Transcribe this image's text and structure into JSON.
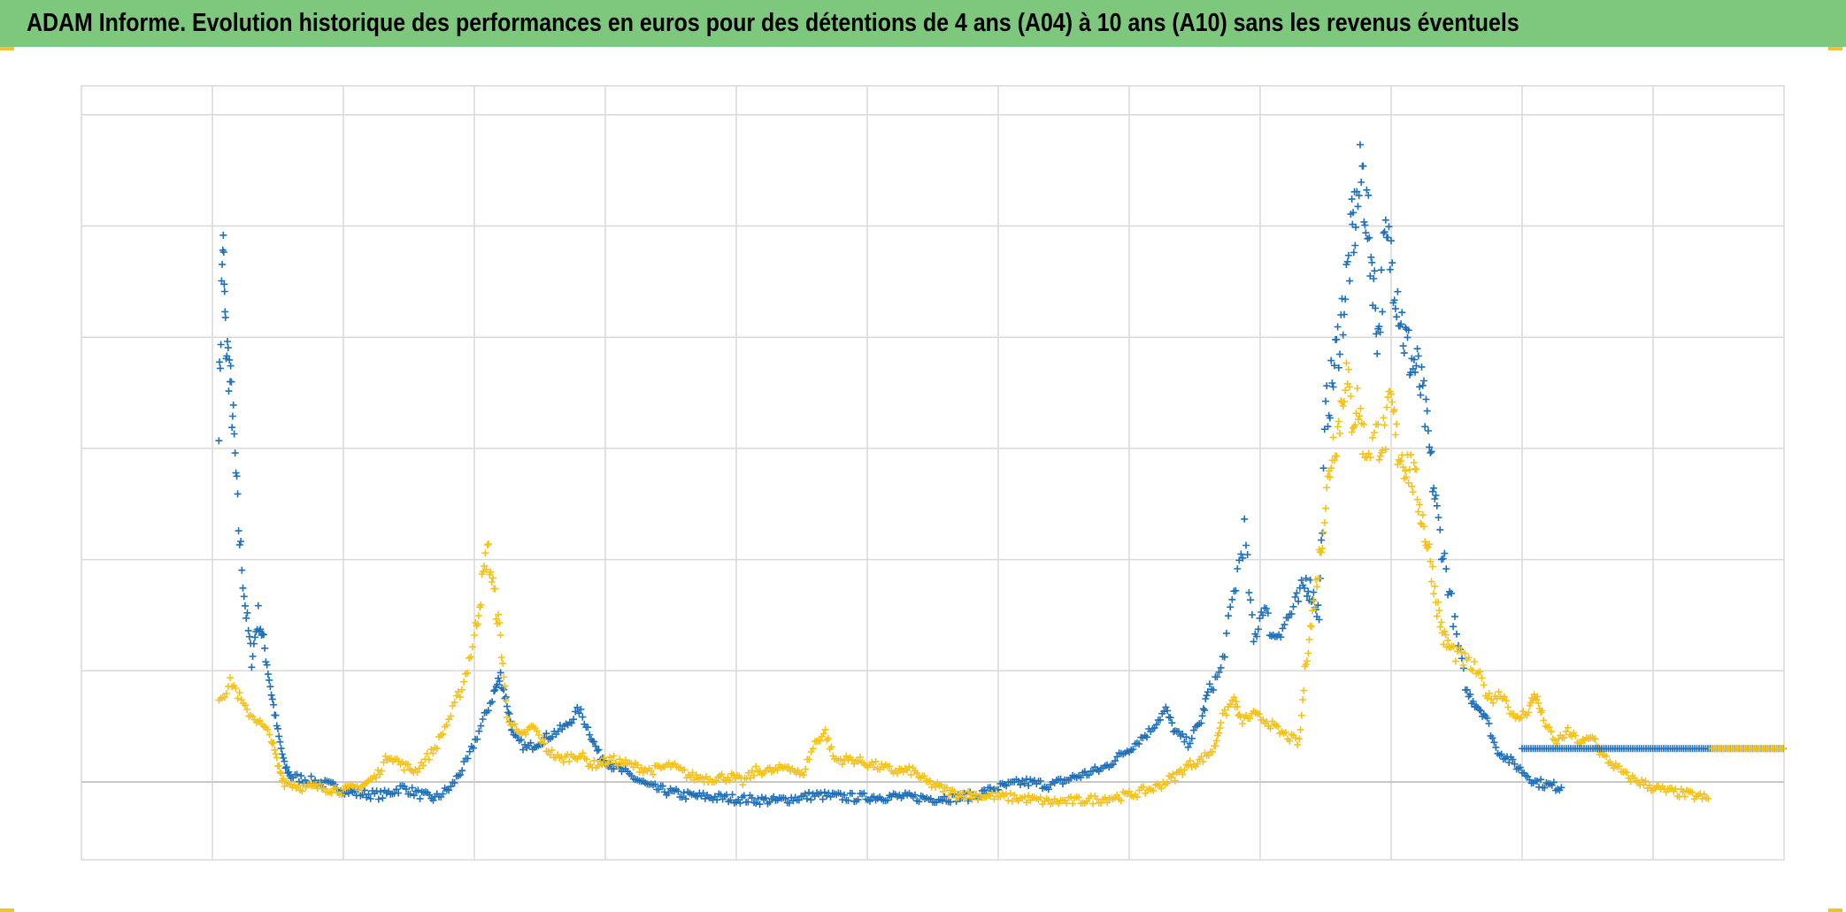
{
  "title": "ADAM Informe. Evolution historique des performances en euros pour des détentions de 4 ans (A04) à 10 ans (A10) sans les revenus éventuels",
  "colors": {
    "title_bg": "#7ec87e",
    "a04": "#1f70b8",
    "a10": "#f5c21b",
    "grid": "#d9d9d9",
    "baseline": "#c8c8c8",
    "corner": "#f2c22c"
  },
  "chart_data": {
    "type": "scatter",
    "title": "ADAM Informe. Evolution historique des performances en euros pour des détentions de 4 ans (A04) à 10 ans (A10) sans les revenus éventuels",
    "xlabel": "",
    "ylabel": "",
    "xlim": [
      0,
      13
    ],
    "ylim": [
      -0.7,
      6.25
    ],
    "grid": true,
    "legend": "none",
    "x_gridlines": 13,
    "y_gridlines": [
      0,
      1,
      2,
      3,
      4,
      5,
      6
    ],
    "marker": "plus",
    "series": [
      {
        "color": "#1f70b8",
        "points": [
          [
            1.05,
            3.3
          ],
          [
            1.08,
            4.9
          ],
          [
            1.1,
            4.0
          ],
          [
            1.13,
            3.7
          ],
          [
            1.16,
            3.2
          ],
          [
            1.2,
            2.3
          ],
          [
            1.25,
            1.6
          ],
          [
            1.3,
            1.1
          ],
          [
            1.35,
            1.5
          ],
          [
            1.4,
            1.2
          ],
          [
            1.45,
            0.8
          ],
          [
            1.5,
            0.45
          ],
          [
            1.55,
            0.15
          ],
          [
            1.6,
            0.05
          ],
          [
            1.8,
            0.0
          ],
          [
            1.95,
            -0.05
          ],
          [
            2.1,
            -0.1
          ],
          [
            2.3,
            -0.12
          ],
          [
            2.45,
            -0.05
          ],
          [
            2.6,
            -0.12
          ],
          [
            2.7,
            -0.15
          ],
          [
            2.82,
            -0.05
          ],
          [
            2.95,
            0.2
          ],
          [
            3.05,
            0.5
          ],
          [
            3.15,
            0.8
          ],
          [
            3.2,
            0.95
          ],
          [
            3.25,
            0.7
          ],
          [
            3.3,
            0.4
          ],
          [
            3.4,
            0.3
          ],
          [
            3.55,
            0.4
          ],
          [
            3.7,
            0.5
          ],
          [
            3.8,
            0.65
          ],
          [
            3.88,
            0.45
          ],
          [
            3.95,
            0.25
          ],
          [
            4.05,
            0.15
          ],
          [
            4.2,
            0.05
          ],
          [
            4.35,
            -0.05
          ],
          [
            4.6,
            -0.12
          ],
          [
            5.0,
            -0.15
          ],
          [
            5.3,
            -0.17
          ],
          [
            5.6,
            -0.12
          ],
          [
            5.9,
            -0.14
          ],
          [
            6.2,
            -0.13
          ],
          [
            6.5,
            -0.15
          ],
          [
            6.8,
            -0.13
          ],
          [
            7.0,
            -0.05
          ],
          [
            7.2,
            0.0
          ],
          [
            7.4,
            -0.03
          ],
          [
            7.6,
            0.05
          ],
          [
            7.8,
            0.12
          ],
          [
            8.0,
            0.3
          ],
          [
            8.15,
            0.45
          ],
          [
            8.28,
            0.65
          ],
          [
            8.35,
            0.45
          ],
          [
            8.45,
            0.35
          ],
          [
            8.55,
            0.55
          ],
          [
            8.6,
            0.8
          ],
          [
            8.7,
            1.0
          ],
          [
            8.8,
            1.7
          ],
          [
            8.88,
            2.25
          ],
          [
            8.95,
            1.25
          ],
          [
            9.02,
            1.6
          ],
          [
            9.1,
            1.3
          ],
          [
            9.2,
            1.45
          ],
          [
            9.28,
            1.6
          ],
          [
            9.35,
            1.8
          ],
          [
            9.4,
            1.7
          ],
          [
            9.45,
            1.5
          ],
          [
            9.5,
            3.3
          ],
          [
            9.55,
            3.6
          ],
          [
            9.6,
            4.0
          ],
          [
            9.65,
            4.4
          ],
          [
            9.7,
            4.9
          ],
          [
            9.73,
            5.1
          ],
          [
            9.78,
            5.5
          ],
          [
            9.82,
            5.0
          ],
          [
            9.86,
            4.6
          ],
          [
            9.9,
            4.0
          ],
          [
            9.95,
            4.8
          ],
          [
            10.0,
            4.75
          ],
          [
            10.05,
            4.4
          ],
          [
            10.1,
            4.0
          ],
          [
            10.15,
            3.8
          ],
          [
            10.2,
            3.7
          ],
          [
            10.25,
            3.4
          ],
          [
            10.3,
            2.9
          ],
          [
            10.35,
            2.4
          ],
          [
            10.42,
            1.9
          ],
          [
            10.5,
            1.3
          ],
          [
            10.58,
            0.8
          ],
          [
            10.65,
            0.7
          ],
          [
            10.72,
            0.6
          ],
          [
            10.8,
            0.3
          ],
          [
            10.9,
            0.2
          ],
          [
            11.0,
            0.1
          ],
          [
            11.1,
            0.0
          ],
          [
            11.2,
            -0.03
          ],
          [
            11.3,
            -0.05
          ]
        ]
      },
      {
        "color": "#f5c21b",
        "points": [
          [
            1.05,
            0.75
          ],
          [
            1.15,
            0.9
          ],
          [
            1.25,
            0.65
          ],
          [
            1.35,
            0.55
          ],
          [
            1.45,
            0.4
          ],
          [
            1.5,
            0.15
          ],
          [
            1.55,
            0.0
          ],
          [
            1.7,
            -0.05
          ],
          [
            1.85,
            -0.05
          ],
          [
            2.0,
            -0.08
          ],
          [
            2.15,
            -0.03
          ],
          [
            2.25,
            0.05
          ],
          [
            2.35,
            0.25
          ],
          [
            2.45,
            0.15
          ],
          [
            2.55,
            0.1
          ],
          [
            2.7,
            0.3
          ],
          [
            2.82,
            0.6
          ],
          [
            2.92,
            0.9
          ],
          [
            3.0,
            1.3
          ],
          [
            3.05,
            1.7
          ],
          [
            3.1,
            2.1
          ],
          [
            3.15,
            1.7
          ],
          [
            3.2,
            1.3
          ],
          [
            3.25,
            0.6
          ],
          [
            3.35,
            0.4
          ],
          [
            3.45,
            0.5
          ],
          [
            3.55,
            0.3
          ],
          [
            3.65,
            0.2
          ],
          [
            3.8,
            0.25
          ],
          [
            3.9,
            0.15
          ],
          [
            4.05,
            0.2
          ],
          [
            4.2,
            0.15
          ],
          [
            4.35,
            0.1
          ],
          [
            4.5,
            0.15
          ],
          [
            4.65,
            0.05
          ],
          [
            4.8,
            0.03
          ],
          [
            4.95,
            0.05
          ],
          [
            5.05,
            0.0
          ],
          [
            5.15,
            0.1
          ],
          [
            5.3,
            0.1
          ],
          [
            5.4,
            0.15
          ],
          [
            5.5,
            0.05
          ],
          [
            5.6,
            0.35
          ],
          [
            5.68,
            0.45
          ],
          [
            5.75,
            0.2
          ],
          [
            5.9,
            0.2
          ],
          [
            6.05,
            0.15
          ],
          [
            6.2,
            0.1
          ],
          [
            6.35,
            0.1
          ],
          [
            6.45,
            0.0
          ],
          [
            6.55,
            -0.05
          ],
          [
            6.65,
            -0.1
          ],
          [
            6.8,
            -0.12
          ],
          [
            7.0,
            -0.13
          ],
          [
            7.2,
            -0.15
          ],
          [
            7.4,
            -0.18
          ],
          [
            7.6,
            -0.17
          ],
          [
            7.8,
            -0.15
          ],
          [
            8.0,
            -0.12
          ],
          [
            8.2,
            -0.05
          ],
          [
            8.35,
            0.05
          ],
          [
            8.45,
            0.15
          ],
          [
            8.55,
            0.2
          ],
          [
            8.65,
            0.3
          ],
          [
            8.7,
            0.55
          ],
          [
            8.8,
            0.75
          ],
          [
            8.85,
            0.55
          ],
          [
            8.95,
            0.6
          ],
          [
            9.05,
            0.55
          ],
          [
            9.15,
            0.45
          ],
          [
            9.3,
            0.35
          ],
          [
            9.35,
            1.1
          ],
          [
            9.4,
            1.5
          ],
          [
            9.45,
            2.0
          ],
          [
            9.5,
            2.5
          ],
          [
            9.55,
            3.0
          ],
          [
            9.6,
            3.2
          ],
          [
            9.65,
            3.7
          ],
          [
            9.7,
            3.3
          ],
          [
            9.75,
            3.4
          ],
          [
            9.8,
            3.0
          ],
          [
            9.9,
            3.1
          ],
          [
            9.95,
            3.1
          ],
          [
            10.0,
            3.4
          ],
          [
            10.05,
            3.0
          ],
          [
            10.1,
            2.9
          ],
          [
            10.15,
            2.8
          ],
          [
            10.2,
            2.6
          ],
          [
            10.25,
            2.3
          ],
          [
            10.3,
            2.0
          ],
          [
            10.35,
            1.6
          ],
          [
            10.4,
            1.3
          ],
          [
            10.45,
            1.2
          ],
          [
            10.55,
            1.1
          ],
          [
            10.65,
            1.0
          ],
          [
            10.75,
            0.75
          ],
          [
            10.85,
            0.8
          ],
          [
            10.95,
            0.55
          ],
          [
            11.05,
            0.65
          ],
          [
            11.1,
            0.8
          ],
          [
            11.15,
            0.6
          ],
          [
            11.25,
            0.35
          ],
          [
            11.35,
            0.45
          ],
          [
            11.45,
            0.35
          ],
          [
            11.55,
            0.4
          ],
          [
            11.6,
            0.25
          ],
          [
            11.7,
            0.15
          ],
          [
            11.8,
            0.05
          ],
          [
            11.9,
            0.0
          ],
          [
            12.0,
            -0.05
          ],
          [
            12.1,
            -0.08
          ],
          [
            12.2,
            -0.1
          ],
          [
            12.3,
            -0.12
          ],
          [
            12.42,
            -0.15
          ]
        ]
      }
    ],
    "extra_segments": [
      {
        "color": "#1f70b8",
        "x": [
          11.0,
          13.0
        ],
        "y": 0.3
      },
      {
        "color": "#f5c21b",
        "x": [
          12.45,
          13.0
        ],
        "y": 0.3
      }
    ]
  }
}
